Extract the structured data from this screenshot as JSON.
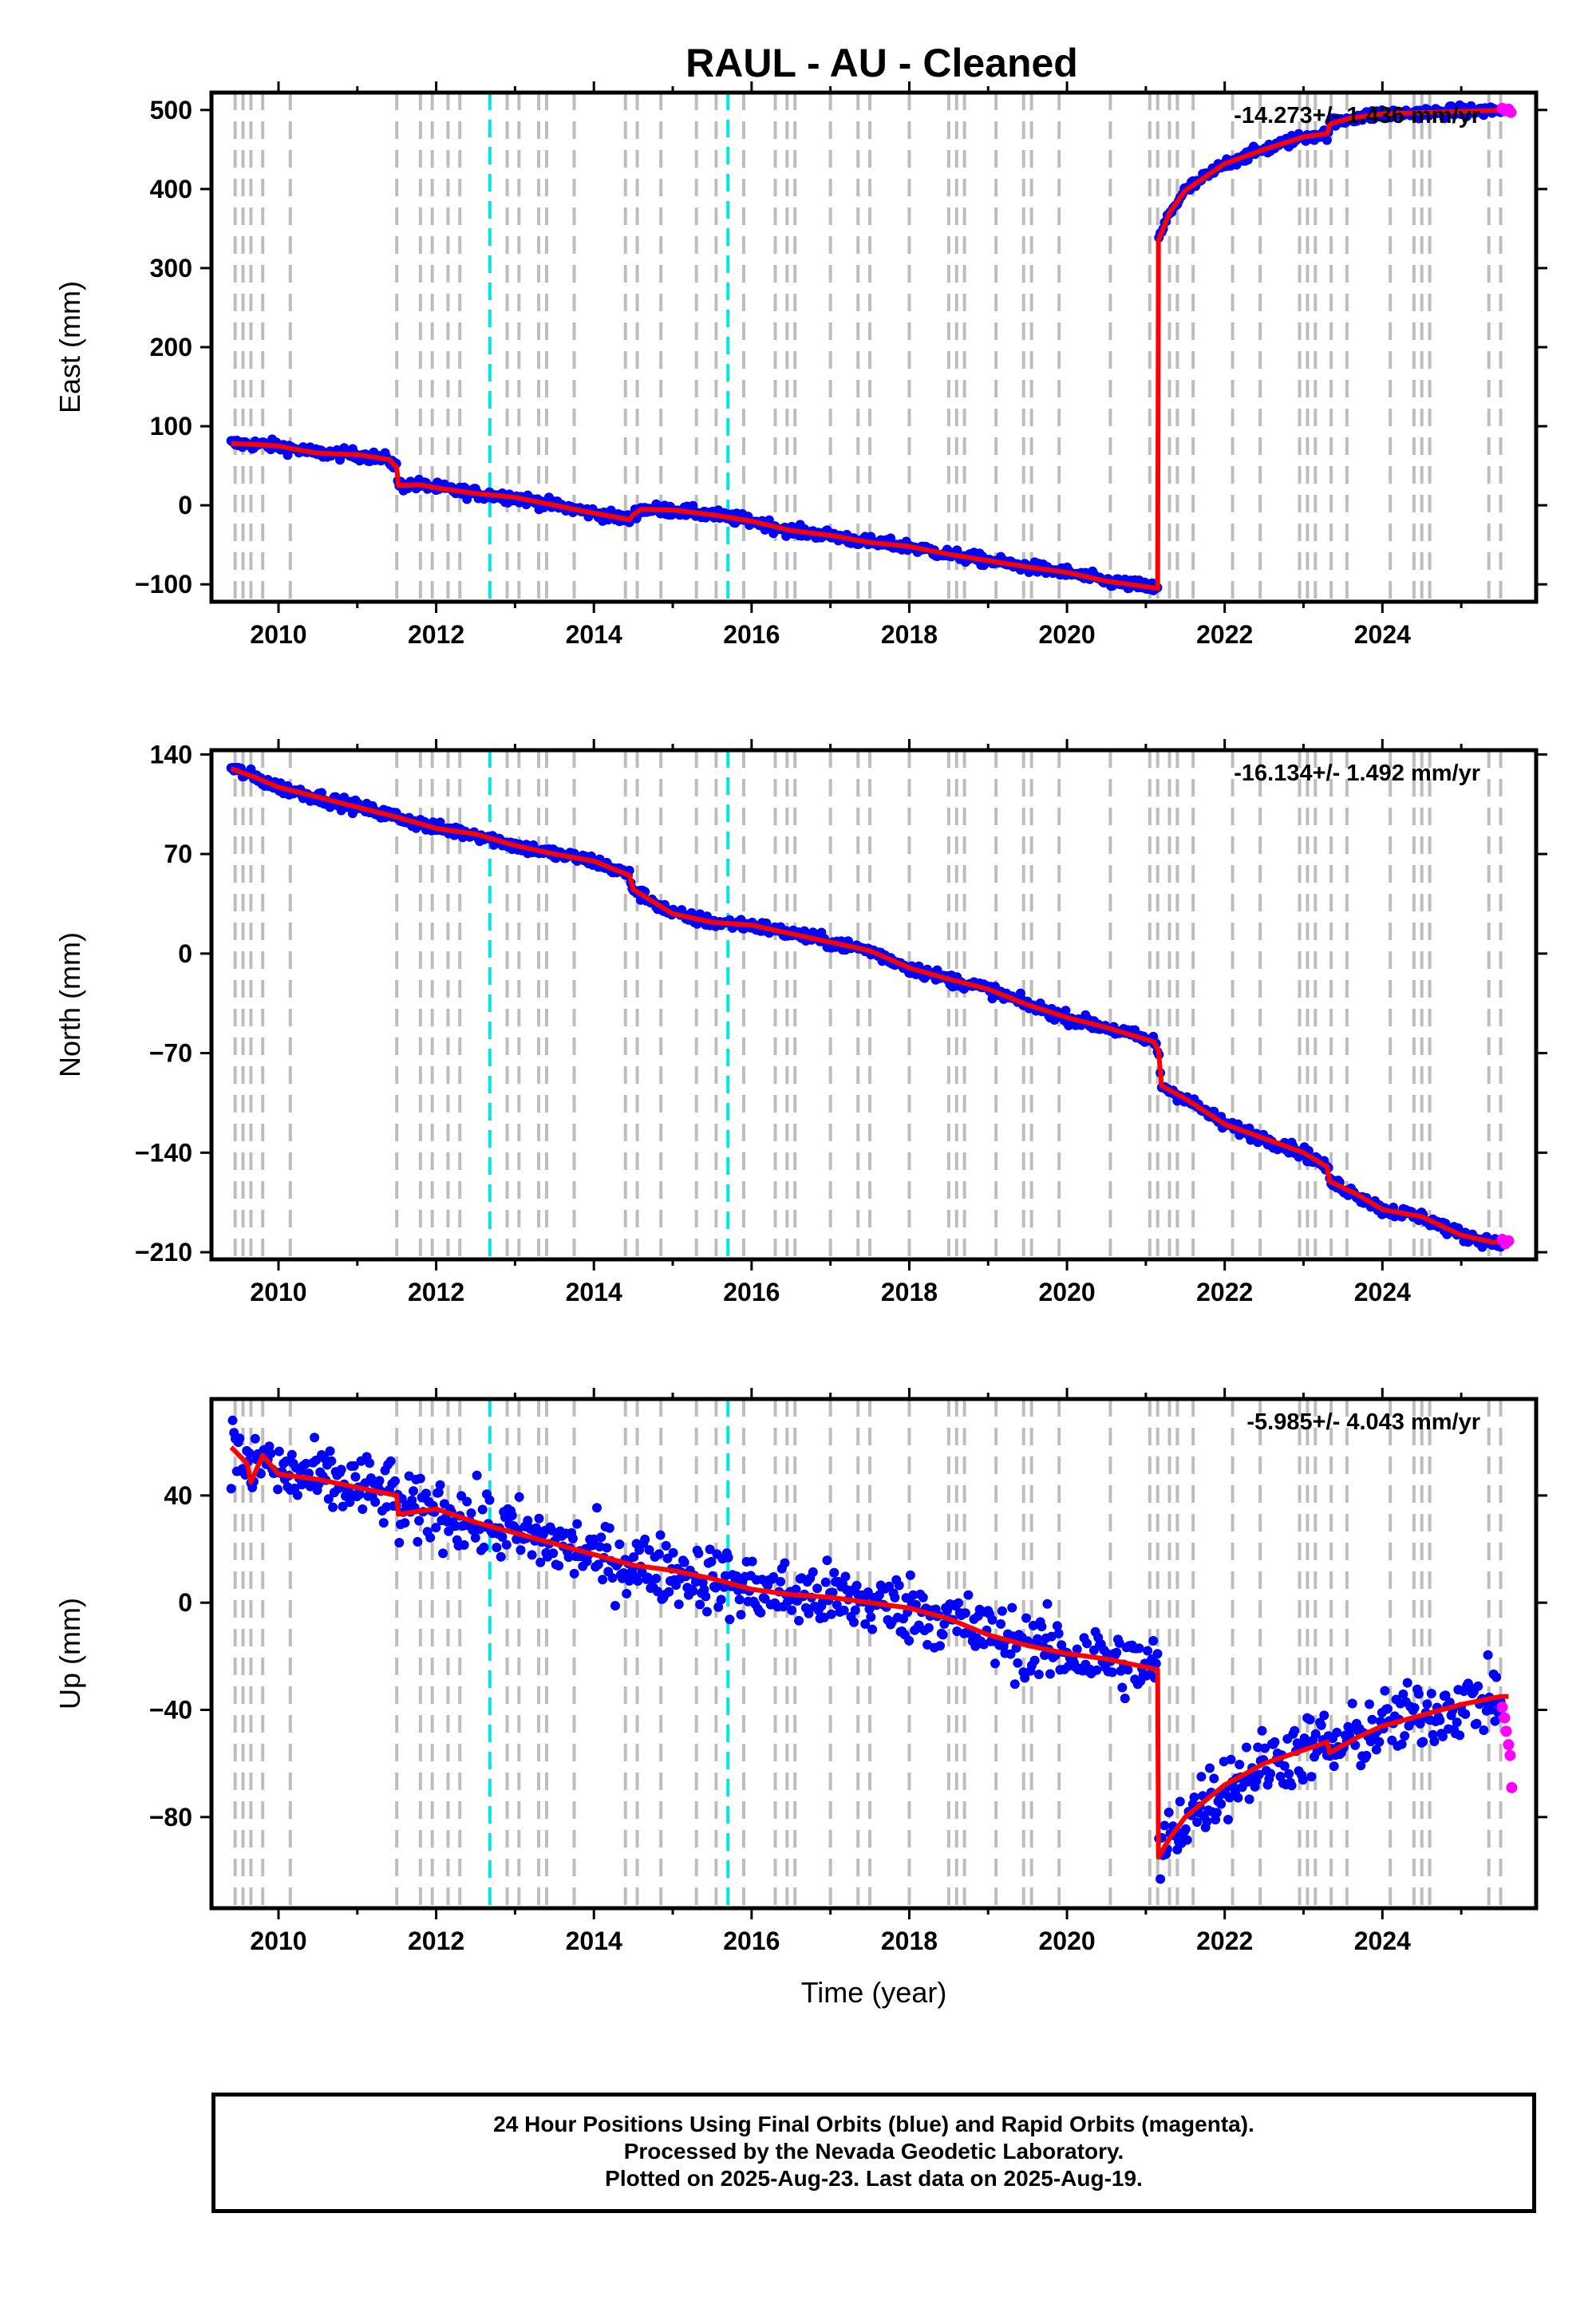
{
  "title": "RAUL  - AU - Cleaned",
  "colors": {
    "final_orbits": "#0000ff",
    "rapid_orbits": "#ff00ff",
    "model_fit": "#ff0000",
    "equipment_change": "#bdbdbd",
    "earthquake": "#00e5e5"
  },
  "footer": {
    "line1": "24 Hour Positions Using Final Orbits (blue) and Rapid Orbits (magenta).",
    "line2": "Processed by the Nevada Geodetic Laboratory.",
    "line3": "Plotted on 2025-Aug-23. Last data on 2025-Aug-19."
  },
  "chart_data": [
    {
      "type": "scatter",
      "panel": "east",
      "ylabel": "East (mm)",
      "xlabel": "",
      "rate_text": "-14.273+/- 1.436 mm/yr",
      "xlim": [
        2009.15,
        2025.95
      ],
      "ylim": [
        -122,
        522
      ],
      "yticks": [
        -100,
        0,
        100,
        200,
        300,
        400,
        500
      ],
      "ytick_labels": [
        "−100",
        "0",
        "100",
        "200",
        "300",
        "400",
        "500"
      ],
      "xticks": [
        2010,
        2012,
        2014,
        2016,
        2018,
        2020,
        2022,
        2024
      ],
      "noise": 5,
      "fit": [
        [
          2009.4,
          78
        ],
        [
          2009.7,
          77
        ],
        [
          2010.0,
          75
        ],
        [
          2010.2,
          71
        ],
        [
          2010.5,
          66
        ],
        [
          2011.0,
          64
        ],
        [
          2011.4,
          58
        ],
        [
          2011.5,
          48
        ],
        [
          2011.52,
          25
        ],
        [
          2011.8,
          26
        ],
        [
          2012.0,
          22
        ],
        [
          2012.5,
          15
        ],
        [
          2013.0,
          10
        ],
        [
          2013.5,
          0
        ],
        [
          2014.0,
          -10
        ],
        [
          2014.45,
          -18
        ],
        [
          2014.5,
          -12
        ],
        [
          2014.6,
          -5
        ],
        [
          2015.0,
          -6
        ],
        [
          2015.5,
          -12
        ],
        [
          2016.0,
          -20
        ],
        [
          2016.5,
          -32
        ],
        [
          2017.0,
          -38
        ],
        [
          2017.5,
          -47
        ],
        [
          2018.0,
          -52
        ],
        [
          2018.5,
          -62
        ],
        [
          2019.0,
          -70
        ],
        [
          2019.5,
          -78
        ],
        [
          2020.0,
          -85
        ],
        [
          2020.5,
          -96
        ],
        [
          2021.15,
          -105
        ],
        [
          2021.16,
          335
        ],
        [
          2021.3,
          370
        ],
        [
          2021.5,
          398
        ],
        [
          2022.0,
          432
        ],
        [
          2022.5,
          450
        ],
        [
          2023.0,
          466
        ],
        [
          2023.3,
          470
        ],
        [
          2023.33,
          482
        ],
        [
          2023.6,
          490
        ],
        [
          2024.0,
          495
        ],
        [
          2025.6,
          500
        ]
      ],
      "rapid_points": [
        [
          2025.52,
          502
        ],
        [
          2025.56,
          499
        ],
        [
          2025.6,
          501
        ],
        [
          2025.63,
          497
        ]
      ]
    },
    {
      "type": "scatter",
      "panel": "north",
      "ylabel": "North (mm)",
      "xlabel": "",
      "rate_text": "-16.134+/- 1.492 mm/yr",
      "xlim": [
        2009.15,
        2025.95
      ],
      "ylim": [
        -215,
        143
      ],
      "yticks": [
        -210,
        -140,
        -70,
        0,
        70,
        140
      ],
      "ytick_labels": [
        "−210",
        "−140",
        "−70",
        "0",
        "70",
        "140"
      ],
      "xticks": [
        2010,
        2012,
        2014,
        2016,
        2018,
        2020,
        2022,
        2024
      ],
      "noise": 3,
      "fit": [
        [
          2009.4,
          130
        ],
        [
          2009.7,
          124
        ],
        [
          2010.0,
          117
        ],
        [
          2010.5,
          110
        ],
        [
          2011.0,
          103
        ],
        [
          2011.5,
          96
        ],
        [
          2012.0,
          88
        ],
        [
          2012.5,
          84
        ],
        [
          2013.0,
          76
        ],
        [
          2013.5,
          70
        ],
        [
          2014.0,
          65
        ],
        [
          2014.45,
          55
        ],
        [
          2014.5,
          45
        ],
        [
          2015.0,
          28
        ],
        [
          2015.5,
          22
        ],
        [
          2016.0,
          20
        ],
        [
          2016.5,
          14
        ],
        [
          2017.0,
          8
        ],
        [
          2017.5,
          2
        ],
        [
          2018.0,
          -10
        ],
        [
          2018.5,
          -18
        ],
        [
          2019.0,
          -25
        ],
        [
          2019.5,
          -36
        ],
        [
          2020.0,
          -45
        ],
        [
          2020.5,
          -52
        ],
        [
          2021.1,
          -62
        ],
        [
          2021.16,
          -68
        ],
        [
          2021.2,
          -93
        ],
        [
          2021.5,
          -102
        ],
        [
          2022.0,
          -120
        ],
        [
          2022.5,
          -130
        ],
        [
          2023.0,
          -140
        ],
        [
          2023.3,
          -150
        ],
        [
          2023.33,
          -160
        ],
        [
          2023.7,
          -170
        ],
        [
          2024.0,
          -180
        ],
        [
          2024.5,
          -185
        ],
        [
          2025.0,
          -198
        ],
        [
          2025.4,
          -203
        ],
        [
          2025.6,
          -203
        ]
      ],
      "rapid_points": [
        [
          2025.52,
          -201
        ],
        [
          2025.56,
          -204
        ],
        [
          2025.6,
          -202
        ]
      ]
    },
    {
      "type": "scatter",
      "panel": "up",
      "ylabel": "Up (mm)",
      "xlabel": "Time (year)",
      "rate_text": "-5.985+/- 4.043 mm/yr",
      "xlim": [
        2009.15,
        2025.95
      ],
      "ylim": [
        -114,
        76
      ],
      "yticks": [
        -80,
        -40,
        0,
        40
      ],
      "ytick_labels": [
        "−80",
        "−40",
        "0",
        "40"
      ],
      "xticks": [
        2010,
        2012,
        2014,
        2016,
        2018,
        2020,
        2022,
        2024
      ],
      "noise": 9,
      "fit": [
        [
          2009.4,
          58
        ],
        [
          2009.6,
          52
        ],
        [
          2009.65,
          45
        ],
        [
          2009.8,
          55
        ],
        [
          2010.0,
          48
        ],
        [
          2010.5,
          46
        ],
        [
          2011.0,
          43
        ],
        [
          2011.5,
          40
        ],
        [
          2011.52,
          33
        ],
        [
          2012.0,
          35
        ],
        [
          2012.5,
          30
        ],
        [
          2013.0,
          26
        ],
        [
          2013.5,
          22
        ],
        [
          2014.0,
          18
        ],
        [
          2014.5,
          14
        ],
        [
          2015.0,
          12
        ],
        [
          2015.5,
          9
        ],
        [
          2016.0,
          5
        ],
        [
          2016.5,
          3
        ],
        [
          2017.0,
          2
        ],
        [
          2017.5,
          0
        ],
        [
          2018.0,
          -2
        ],
        [
          2018.5,
          -6
        ],
        [
          2019.0,
          -12
        ],
        [
          2019.5,
          -16
        ],
        [
          2020.0,
          -19
        ],
        [
          2020.5,
          -21
        ],
        [
          2021.15,
          -25
        ],
        [
          2021.16,
          -95
        ],
        [
          2021.3,
          -88
        ],
        [
          2021.5,
          -80
        ],
        [
          2022.0,
          -68
        ],
        [
          2022.5,
          -60
        ],
        [
          2023.0,
          -55
        ],
        [
          2023.3,
          -52
        ],
        [
          2023.33,
          -56
        ],
        [
          2023.7,
          -50
        ],
        [
          2024.0,
          -46
        ],
        [
          2024.5,
          -42
        ],
        [
          2025.0,
          -38
        ],
        [
          2025.5,
          -35
        ],
        [
          2025.6,
          -35
        ]
      ],
      "rapid_points": [
        [
          2025.52,
          -39
        ],
        [
          2025.55,
          -43
        ],
        [
          2025.57,
          -48
        ],
        [
          2025.6,
          -53
        ],
        [
          2025.62,
          -57
        ],
        [
          2025.64,
          -69
        ]
      ]
    }
  ],
  "event_lines": {
    "equipment_changes": [
      2009.45,
      2009.55,
      2009.65,
      2009.8,
      2010.15,
      2011.5,
      2011.8,
      2011.95,
      2012.15,
      2012.3,
      2012.9,
      2013.05,
      2013.3,
      2013.4,
      2013.75,
      2014.4,
      2014.55,
      2014.85,
      2015.3,
      2015.55,
      2015.9,
      2016.3,
      2016.45,
      2016.55,
      2017.0,
      2017.35,
      2017.5,
      2018.0,
      2018.5,
      2018.6,
      2018.7,
      2019.1,
      2019.45,
      2019.55,
      2019.9,
      2020.55,
      2021.05,
      2021.15,
      2021.3,
      2021.4,
      2021.6,
      2022.1,
      2022.45,
      2022.95,
      2023.05,
      2023.15,
      2023.35,
      2023.55,
      2024.1,
      2024.4,
      2024.5,
      2024.6,
      2025.35,
      2025.5
    ],
    "earthquakes": [
      2012.68,
      2015.7
    ]
  }
}
